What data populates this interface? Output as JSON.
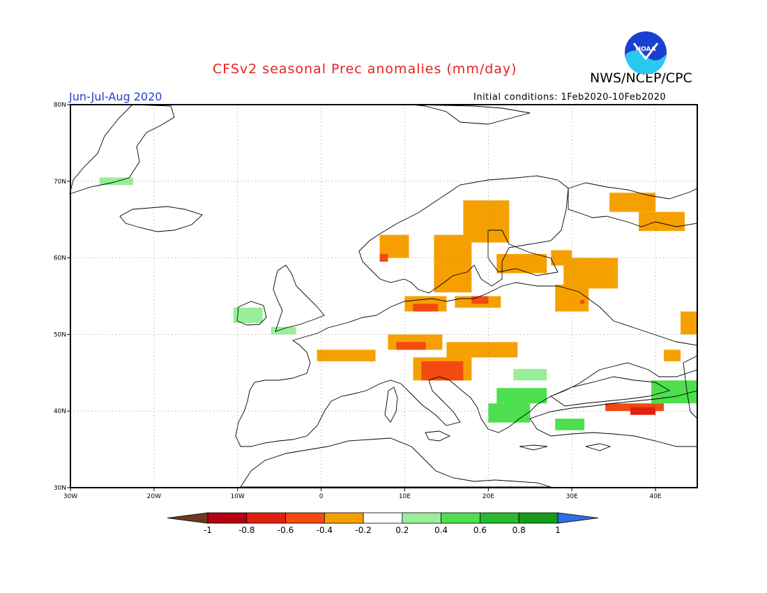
{
  "header": {
    "title": "CFSv2 seasonal Prec anomalies (mm/day)",
    "agency": "NWS/NCEP/CPC",
    "season": "Jun-Jul-Aug 2020",
    "initial_conditions": "Initial conditions: 1Feb2020-10Feb2020",
    "logo_text": "NOAA"
  },
  "map": {
    "lon_range": [
      -30,
      45
    ],
    "lat_range": [
      30,
      80
    ],
    "lon_labels": [
      "30W",
      "20W",
      "10W",
      "0",
      "10E",
      "20E",
      "30E",
      "40E"
    ],
    "lat_labels": [
      "30N",
      "40N",
      "50N",
      "60N",
      "70N",
      "80N"
    ],
    "grid": true
  },
  "colorbar": {
    "labels": [
      "-1",
      "-0.8",
      "-0.6",
      "-0.4",
      "-0.2",
      "0.2",
      "0.4",
      "0.6",
      "0.8",
      "1"
    ],
    "colors": [
      "#6b3a1f",
      "#b3000f",
      "#e0200f",
      "#f24a10",
      "#f5a000",
      "#ffffff",
      "#99ee99",
      "#4ddf4d",
      "#29b82e",
      "#159a1c",
      "#2d6ee0"
    ]
  },
  "chart_data": {
    "type": "heatmap",
    "title": "CFSv2 seasonal Prec anomalies (mm/day)",
    "units": "mm/day",
    "levels": [
      -1,
      -0.8,
      -0.6,
      -0.4,
      -0.2,
      0.2,
      0.4,
      0.6,
      0.8,
      1
    ],
    "anomaly_cells": [
      {
        "lon": [
          -26.5,
          -22.5
        ],
        "lat": [
          69.5,
          70.5
        ],
        "value": 0.3
      },
      {
        "lon": [
          17,
          22.5
        ],
        "lat": [
          62,
          67.5
        ],
        "value": -0.3
      },
      {
        "lon": [
          13.5,
          18
        ],
        "lat": [
          55.5,
          63
        ],
        "value": -0.3
      },
      {
        "lon": [
          7,
          10.5
        ],
        "lat": [
          60,
          63
        ],
        "value": -0.3
      },
      {
        "lon": [
          7,
          8
        ],
        "lat": [
          59.5,
          60.5
        ],
        "value": -0.5
      },
      {
        "lon": [
          21,
          27
        ],
        "lat": [
          58,
          60.5
        ],
        "value": -0.3
      },
      {
        "lon": [
          27.5,
          30
        ],
        "lat": [
          59,
          61
        ],
        "value": -0.3
      },
      {
        "lon": [
          29,
          35.5
        ],
        "lat": [
          56,
          60
        ],
        "value": -0.3
      },
      {
        "lon": [
          28,
          32
        ],
        "lat": [
          53,
          56.5
        ],
        "value": -0.3
      },
      {
        "lon": [
          31,
          31.5
        ],
        "lat": [
          54,
          54.5
        ],
        "value": -0.5
      },
      {
        "lon": [
          34.5,
          40
        ],
        "lat": [
          66,
          68.5
        ],
        "value": -0.3
      },
      {
        "lon": [
          38,
          43.5
        ],
        "lat": [
          63.5,
          66
        ],
        "value": -0.3
      },
      {
        "lon": [
          10,
          15
        ],
        "lat": [
          53,
          55
        ],
        "value": -0.3
      },
      {
        "lon": [
          11,
          14
        ],
        "lat": [
          53,
          54
        ],
        "value": -0.5
      },
      {
        "lon": [
          16,
          21.5
        ],
        "lat": [
          53.5,
          55
        ],
        "value": -0.3
      },
      {
        "lon": [
          18,
          20
        ],
        "lat": [
          54,
          55
        ],
        "value": -0.5
      },
      {
        "lon": [
          8,
          14.5
        ],
        "lat": [
          48,
          50
        ],
        "value": -0.3
      },
      {
        "lon": [
          9,
          12.5
        ],
        "lat": [
          48,
          49
        ],
        "value": -0.5
      },
      {
        "lon": [
          -0.5,
          6.5
        ],
        "lat": [
          46.5,
          48
        ],
        "value": -0.3
      },
      {
        "lon": [
          15,
          23.5
        ],
        "lat": [
          47,
          49
        ],
        "value": -0.3
      },
      {
        "lon": [
          11,
          18
        ],
        "lat": [
          44,
          47
        ],
        "value": -0.3
      },
      {
        "lon": [
          12,
          17
        ],
        "lat": [
          44,
          46.5
        ],
        "value": -0.5
      },
      {
        "lon": [
          34,
          41
        ],
        "lat": [
          40,
          41
        ],
        "value": -0.5
      },
      {
        "lon": [
          37,
          40
        ],
        "lat": [
          39.5,
          40.5
        ],
        "value": -0.7
      },
      {
        "lon": [
          41,
          43
        ],
        "lat": [
          46.5,
          48
        ],
        "value": -0.3
      },
      {
        "lon": [
          43,
          45
        ],
        "lat": [
          50,
          53
        ],
        "value": -0.3
      },
      {
        "lon": [
          -10.5,
          -7
        ],
        "lat": [
          51.5,
          53.5
        ],
        "value": 0.3
      },
      {
        "lon": [
          -6,
          -3
        ],
        "lat": [
          50,
          51
        ],
        "value": 0.3
      },
      {
        "lon": [
          23,
          27
        ],
        "lat": [
          44,
          45.5
        ],
        "value": 0.3
      },
      {
        "lon": [
          21,
          27
        ],
        "lat": [
          41,
          43
        ],
        "value": 0.5
      },
      {
        "lon": [
          20,
          25
        ],
        "lat": [
          38.5,
          41
        ],
        "value": 0.5
      },
      {
        "lon": [
          28,
          31.5
        ],
        "lat": [
          37.5,
          39
        ],
        "value": 0.5
      },
      {
        "lon": [
          39.5,
          45
        ],
        "lat": [
          41,
          44
        ],
        "value": 0.5
      },
      {
        "lon": [
          -30,
          0
        ],
        "lat": [
          30,
          80
        ],
        "value": 0.0
      }
    ]
  }
}
